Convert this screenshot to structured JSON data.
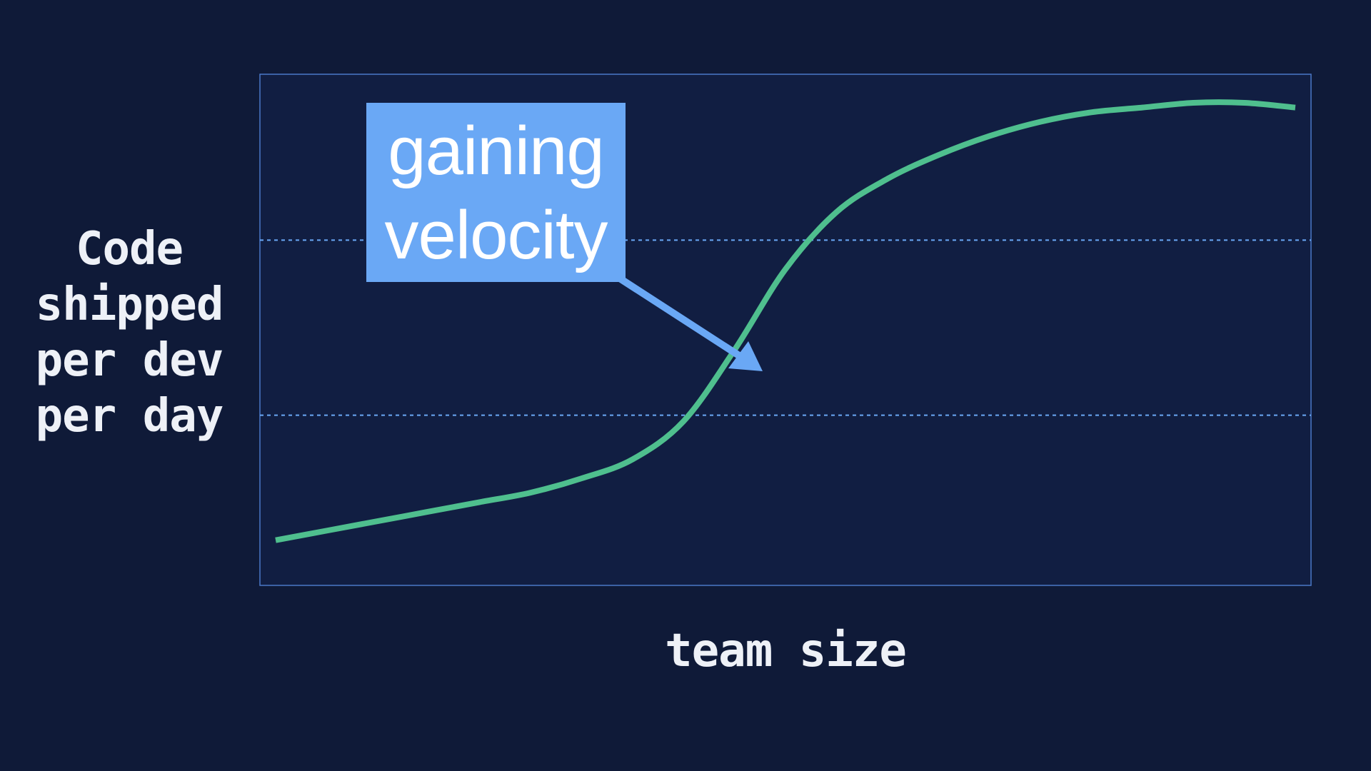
{
  "chart_data": {
    "type": "line",
    "title": "",
    "xlabel": "team size",
    "ylabel_lines": [
      "Code",
      "shipped",
      "per dev",
      "per day"
    ],
    "x": [
      0,
      5,
      10,
      15,
      20,
      25,
      30,
      35,
      40,
      45,
      50,
      55,
      60,
      65,
      70,
      75,
      80,
      85,
      90,
      95,
      100
    ],
    "series": [
      {
        "values": [
          0.05,
          0.07,
          0.09,
          0.11,
          0.13,
          0.15,
          0.18,
          0.22,
          0.3,
          0.45,
          0.62,
          0.74,
          0.81,
          0.86,
          0.9,
          0.93,
          0.95,
          0.96,
          0.97,
          0.97,
          0.96
        ]
      }
    ],
    "xlim": [
      0,
      100
    ],
    "ylim": [
      0,
      1
    ],
    "grid_y": [
      0.333,
      0.667
    ],
    "axis_ticks": false,
    "annotation": {
      "lines": [
        "gaining",
        "velocity"
      ],
      "points_to_x": 47.5
    },
    "colors": {
      "background": "#0f1a38",
      "plot_background": "#111e42",
      "frame": "#4a78c8",
      "grid": "#6aa8f5",
      "line": "#4fbf8e",
      "annotation": "#6aa8f5",
      "text": "#eef1f7"
    }
  }
}
